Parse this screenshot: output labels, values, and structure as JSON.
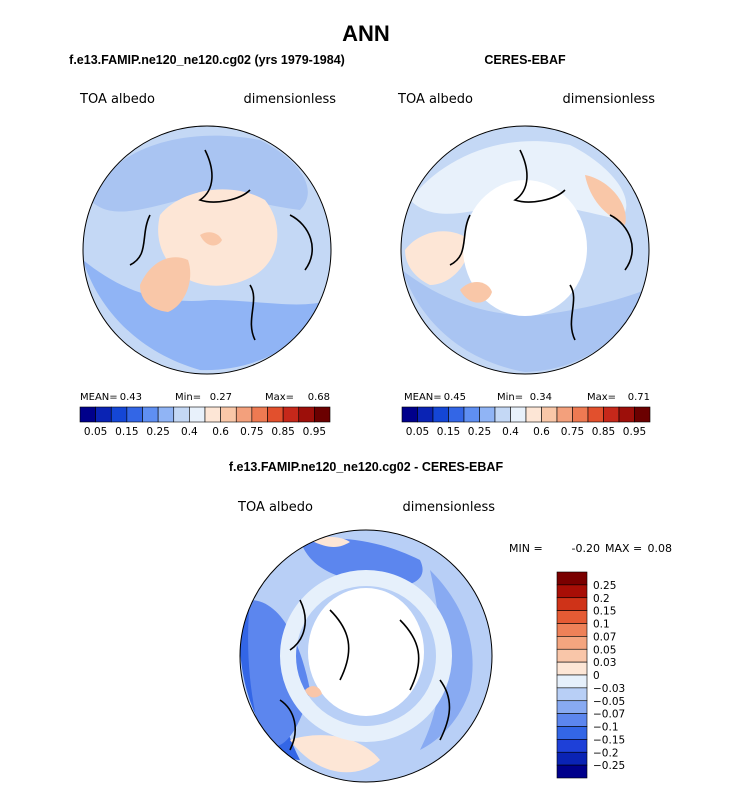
{
  "title": "ANN",
  "colors": {
    "abs_scale": [
      "#00008b",
      "#0a23b4",
      "#1446d6",
      "#3366e6",
      "#5f8ff2",
      "#90b4f5",
      "#c4d8f5",
      "#e8f1fb",
      "#fde6d6",
      "#f9c7a8",
      "#f3a07c",
      "#ee7a52",
      "#e2502d",
      "#c6281a",
      "#9d0f0a",
      "#6b0000"
    ],
    "diff_scale": [
      "#00008b",
      "#0a23b4",
      "#1e40d8",
      "#3366e6",
      "#5c86ee",
      "#88aaf2",
      "#b8cff6",
      "#e6f0fb",
      "#fde6d6",
      "#f9c6a9",
      "#f4a57f",
      "#ee8158",
      "#e55b34",
      "#cf3318",
      "#a80e06",
      "#7a0000"
    ]
  },
  "panels": {
    "model": {
      "title": "f.e13.FAMIP.ne120_ne120.cg02 (yrs 1979-1984)",
      "left_label": "TOA albedo",
      "right_label": "dimensionless",
      "stats": {
        "mean_label": "MEAN=",
        "mean": "0.43",
        "min_label": "Min=",
        "min": "0.27",
        "max_label": "Max=",
        "max": "0.68"
      }
    },
    "obs": {
      "title": "CERES-EBAF",
      "left_label": "TOA albedo",
      "right_label": "dimensionless",
      "stats": {
        "mean_label": "MEAN=",
        "mean": "0.45",
        "min_label": "Min=",
        "min": "0.34",
        "max_label": "Max=",
        "max": "0.71"
      }
    },
    "diff": {
      "title": "f.e13.FAMIP.ne120_ne120.cg02 - CERES-EBAF",
      "left_label": "TOA albedo",
      "right_label": "dimensionless",
      "stats": {
        "min_label": "MIN =",
        "min": "-0.20",
        "max_label": "MAX =",
        "max": "0.08"
      }
    }
  },
  "chart_data": [
    {
      "type": "heatmap",
      "title": "f.e13.FAMIP.ne120_ne120.cg02 (yrs 1979-1984)",
      "projection": "north polar stereographic",
      "variable": "TOA albedo",
      "units": "dimensionless",
      "mean": 0.43,
      "min": 0.27,
      "max": 0.68,
      "colorbar_ticks": [
        "0.05",
        "0.15",
        "0.25",
        "0.4",
        "0.6",
        "0.75",
        "0.85",
        "0.95"
      ]
    },
    {
      "type": "heatmap",
      "title": "CERES-EBAF",
      "projection": "north polar stereographic",
      "variable": "TOA albedo",
      "units": "dimensionless",
      "mean": 0.45,
      "min": 0.34,
      "max": 0.71,
      "colorbar_ticks": [
        "0.05",
        "0.15",
        "0.25",
        "0.4",
        "0.6",
        "0.75",
        "0.85",
        "0.95"
      ]
    },
    {
      "type": "heatmap",
      "title": "f.e13.FAMIP.ne120_ne120.cg02 - CERES-EBAF",
      "projection": "north polar stereographic",
      "variable": "TOA albedo",
      "units": "dimensionless",
      "min": -0.2,
      "max": 0.08,
      "colorbar_ticks": [
        "0.25",
        "0.2",
        "0.15",
        "0.1",
        "0.07",
        "0.05",
        "0.03",
        "0",
        "−0.03",
        "−0.05",
        "−0.07",
        "−0.1",
        "−0.15",
        "−0.2",
        "−0.25"
      ]
    }
  ]
}
